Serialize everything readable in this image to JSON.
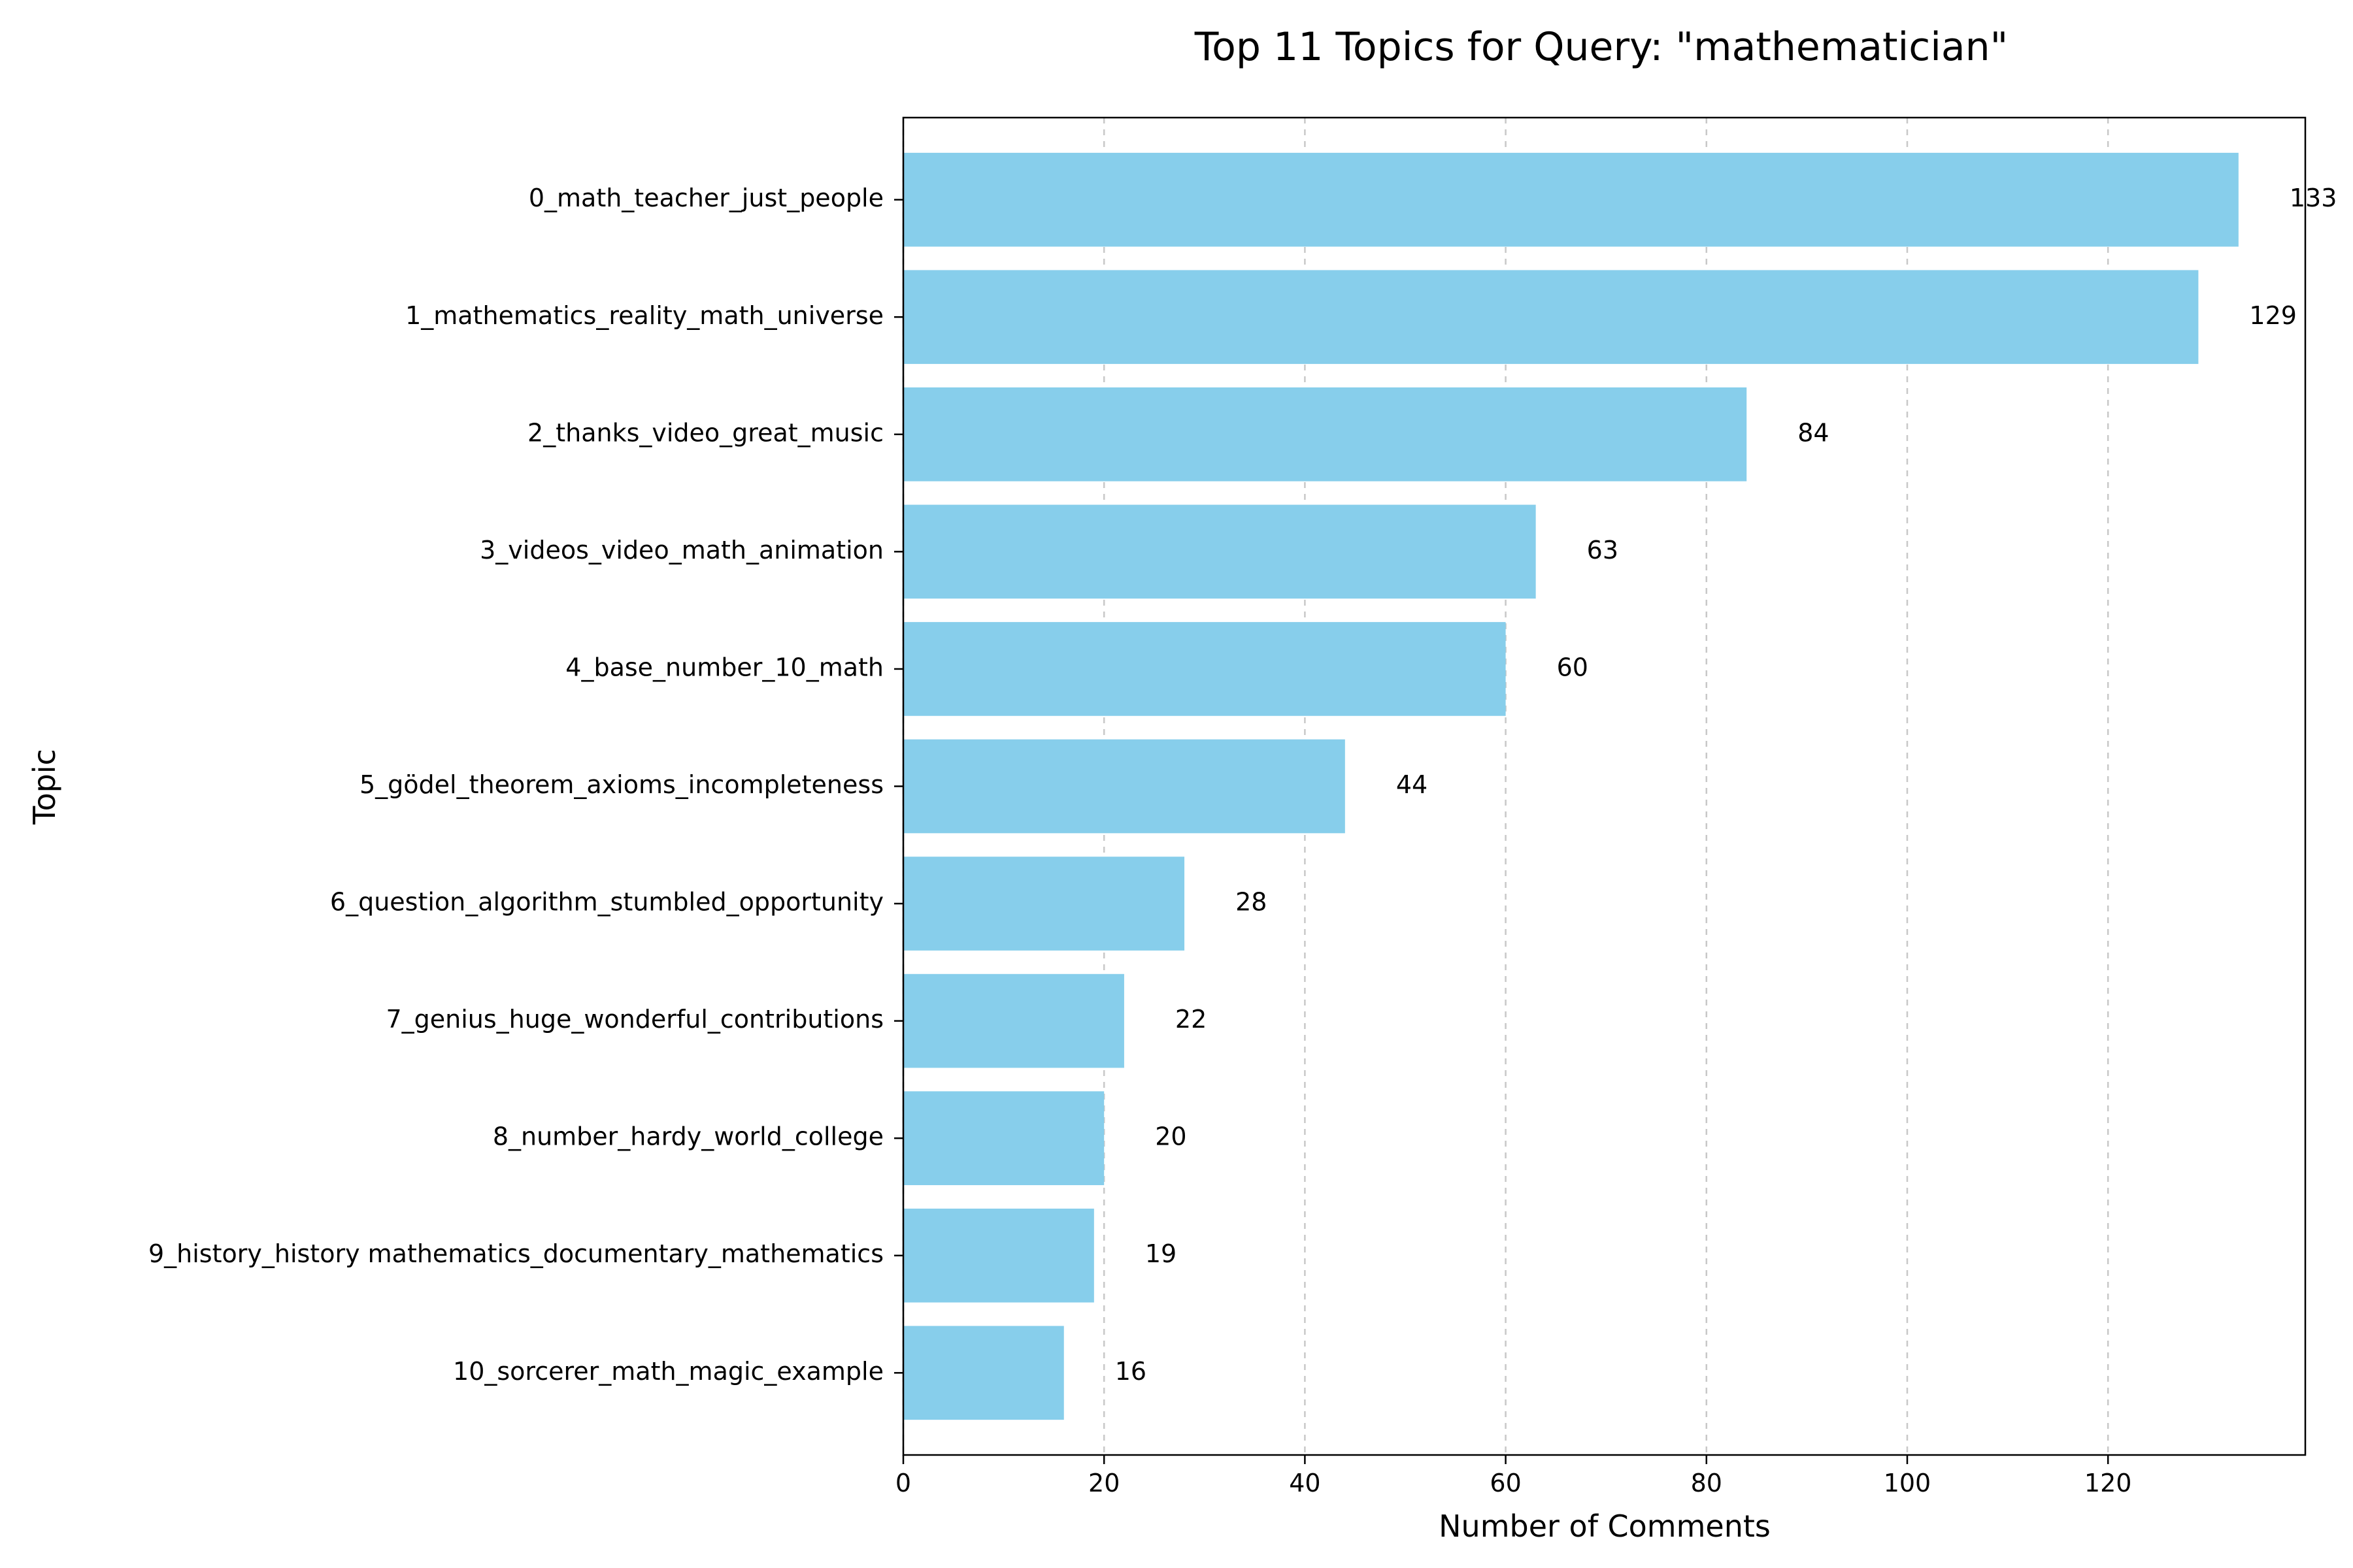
{
  "chart_data": {
    "type": "bar",
    "orientation": "horizontal",
    "title": "Top 11 Topics for Query: \"mathematician\"",
    "xlabel": "Number of Comments",
    "ylabel": "Topic",
    "categories": [
      "0_math_teacher_just_people",
      "1_mathematics_reality_math_universe",
      "2_thanks_video_great_music",
      "3_videos_video_math_animation",
      "4_base_number_10_math",
      "5_gödel_theorem_axioms_incompleteness",
      "6_question_algorithm_stumbled_opportunity",
      "7_genius_huge_wonderful_contributions",
      "8_number_hardy_world_college",
      "9_history_history mathematics_documentary_mathematics",
      "10_sorcerer_math_magic_example"
    ],
    "values": [
      133,
      129,
      84,
      63,
      60,
      44,
      28,
      22,
      20,
      19,
      16
    ],
    "xlim": [
      0,
      139.65
    ],
    "xticks": [
      0,
      20,
      40,
      60,
      80,
      100,
      120
    ],
    "grid": "x-dashed",
    "bar_color": "#87ceeb",
    "grid_color": "#c8c8c8",
    "data_labels": true
  }
}
